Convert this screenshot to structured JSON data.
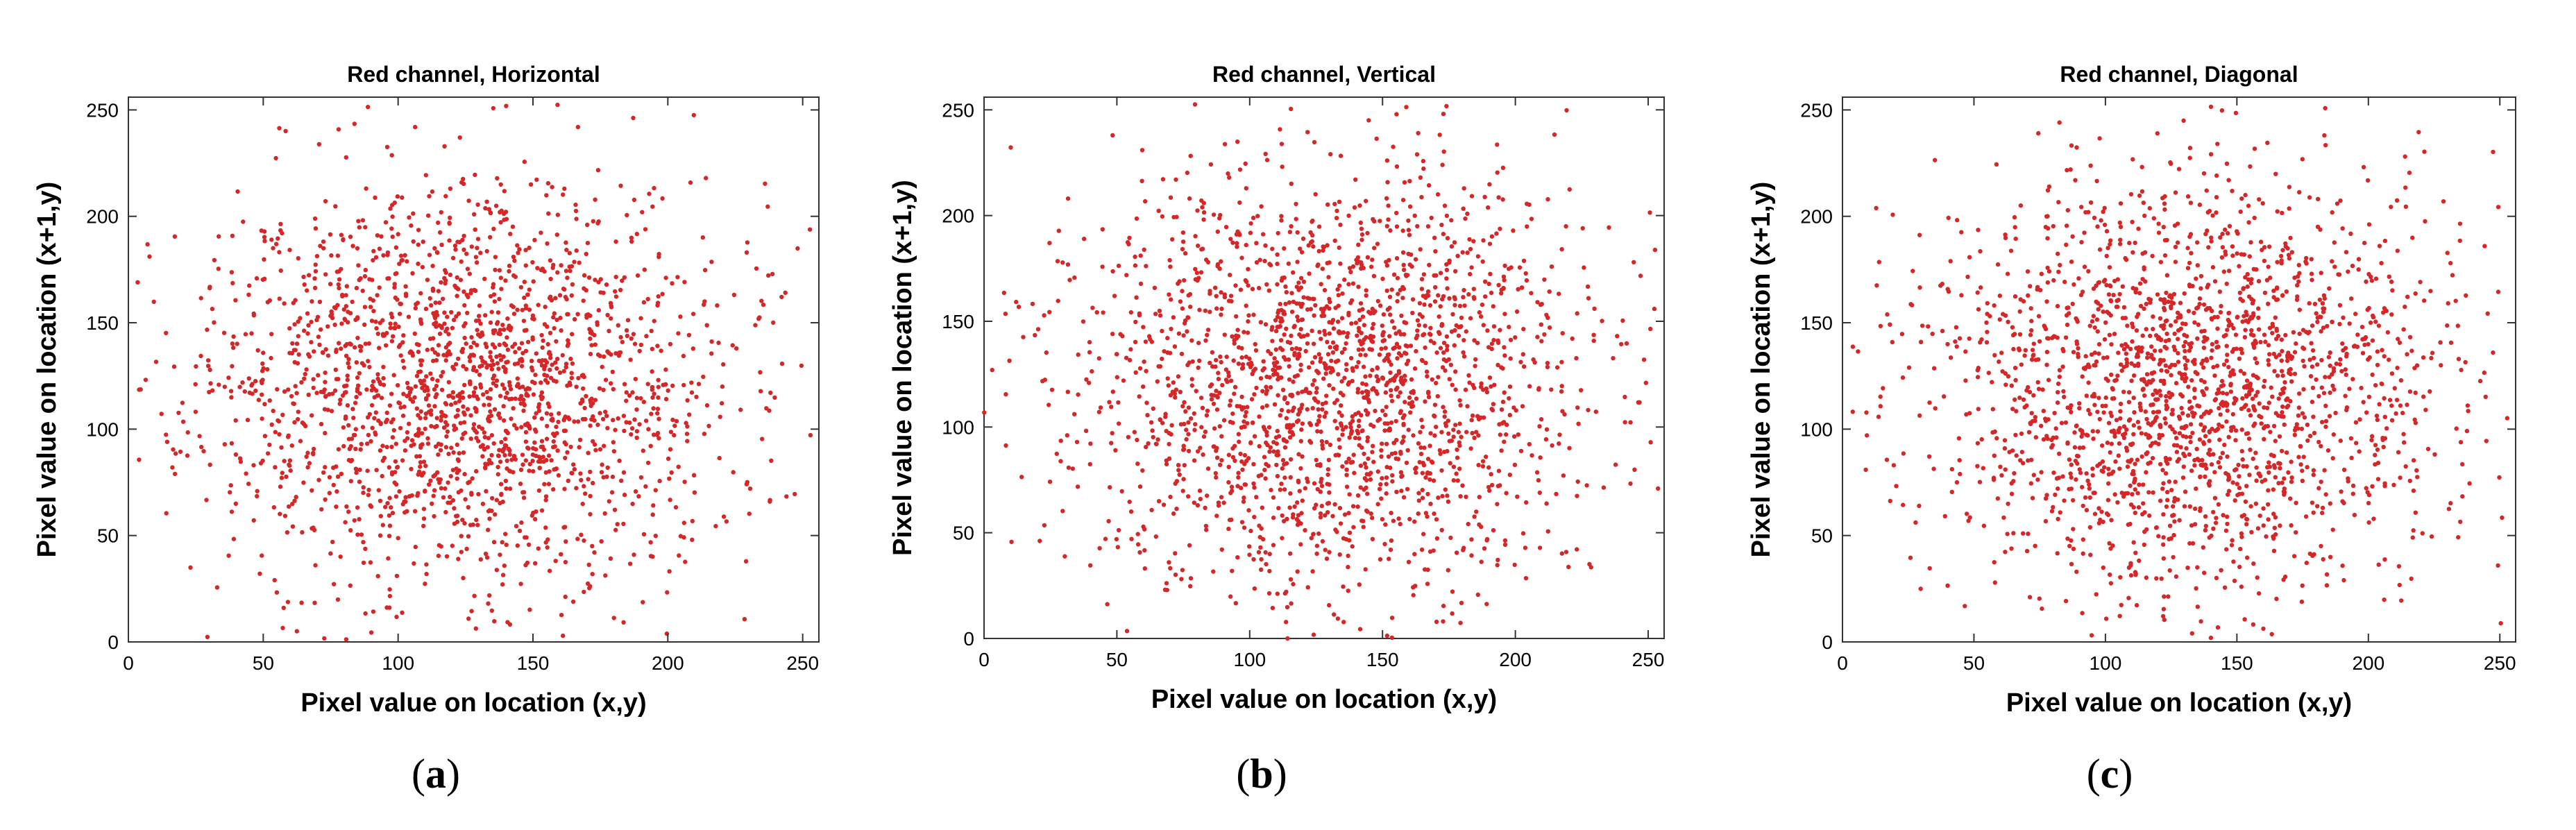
{
  "chart_data": [
    {
      "type": "scatter",
      "title": "Red channel, Horizontal",
      "xlabel": "Pixel value on location (x,y)",
      "ylabel": "Pixel value on location (x+1,y)",
      "xlim": [
        0,
        256
      ],
      "ylim": [
        0,
        256
      ],
      "xticks": [
        0,
        50,
        100,
        150,
        200,
        250
      ],
      "yticks": [
        0,
        50,
        100,
        150,
        200,
        250
      ],
      "grid": false,
      "marker_color": "#d62728",
      "panel_label": {
        "open": "(",
        "letter": "a",
        "close": ")"
      },
      "distribution": {
        "mean_x": 125,
        "mean_y": 120,
        "sd_x": 48,
        "sd_y": 48,
        "count": 2000,
        "seed": 11
      }
    },
    {
      "type": "scatter",
      "title": "Red channel, Vertical",
      "xlabel": "Pixel value on location (x,y)",
      "ylabel": "Pixel value on location (x+1,y)",
      "xlim": [
        0,
        256
      ],
      "ylim": [
        0,
        256
      ],
      "xticks": [
        0,
        50,
        100,
        150,
        200,
        250
      ],
      "yticks": [
        0,
        50,
        100,
        150,
        200,
        250
      ],
      "grid": false,
      "marker_color": "#d62728",
      "panel_label": {
        "open": "(",
        "letter": "b",
        "close": ")"
      },
      "distribution": {
        "mean_x": 130,
        "mean_y": 120,
        "sd_x": 48,
        "sd_y": 50,
        "count": 2000,
        "seed": 23
      }
    },
    {
      "type": "scatter",
      "title": "Red channel, Diagonal",
      "xlabel": "Pixel value on location (x,y)",
      "ylabel": "Pixel value on location (x+1,y)",
      "xlim": [
        0,
        256
      ],
      "ylim": [
        0,
        256
      ],
      "xticks": [
        0,
        50,
        100,
        150,
        200,
        250
      ],
      "yticks": [
        0,
        50,
        100,
        150,
        200,
        250
      ],
      "grid": false,
      "marker_color": "#d62728",
      "panel_label": {
        "open": "(",
        "letter": "c",
        "close": ")"
      },
      "distribution": {
        "mean_x": 130,
        "mean_y": 120,
        "sd_x": 47,
        "sd_y": 49,
        "count": 2000,
        "seed": 37
      }
    }
  ]
}
